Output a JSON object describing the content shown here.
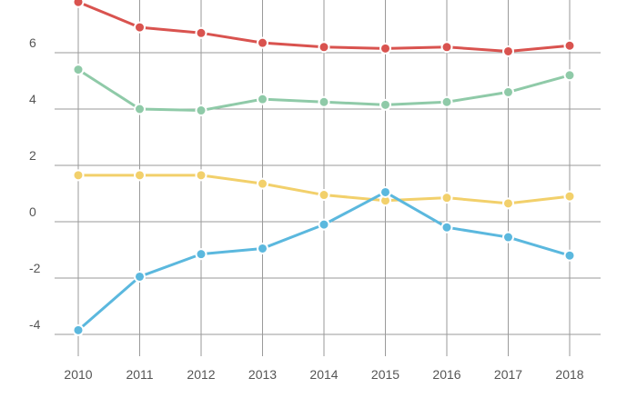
{
  "chart_data": {
    "type": "line",
    "x": [
      "2010",
      "2011",
      "2012",
      "2013",
      "2014",
      "2015",
      "2016",
      "2017",
      "2018"
    ],
    "xlabel": "",
    "ylabel": "",
    "ylim": [
      -4.8,
      7.8
    ],
    "yticks": [
      -4,
      -2,
      0,
      2,
      4,
      6
    ],
    "ytick_labels": [
      "-4",
      "-2",
      "0",
      "2",
      "4",
      "6"
    ],
    "grid": true,
    "legend": "none",
    "series": [
      {
        "color": "#d9534f",
        "values": [
          7.8,
          6.9,
          6.7,
          6.35,
          6.2,
          6.15,
          6.2,
          6.05,
          6.25
        ]
      },
      {
        "color": "#8fcaa8",
        "values": [
          5.4,
          4.0,
          3.95,
          4.35,
          4.25,
          4.15,
          4.25,
          4.6,
          5.2
        ]
      },
      {
        "color": "#f2d06b",
        "values": [
          1.65,
          1.65,
          1.65,
          1.35,
          0.95,
          0.75,
          0.85,
          0.65,
          0.9
        ]
      },
      {
        "color": "#5bb8de",
        "values": [
          -3.85,
          -1.95,
          -1.15,
          -0.95,
          -0.1,
          1.05,
          -0.2,
          -0.55,
          -1.2
        ]
      }
    ]
  }
}
